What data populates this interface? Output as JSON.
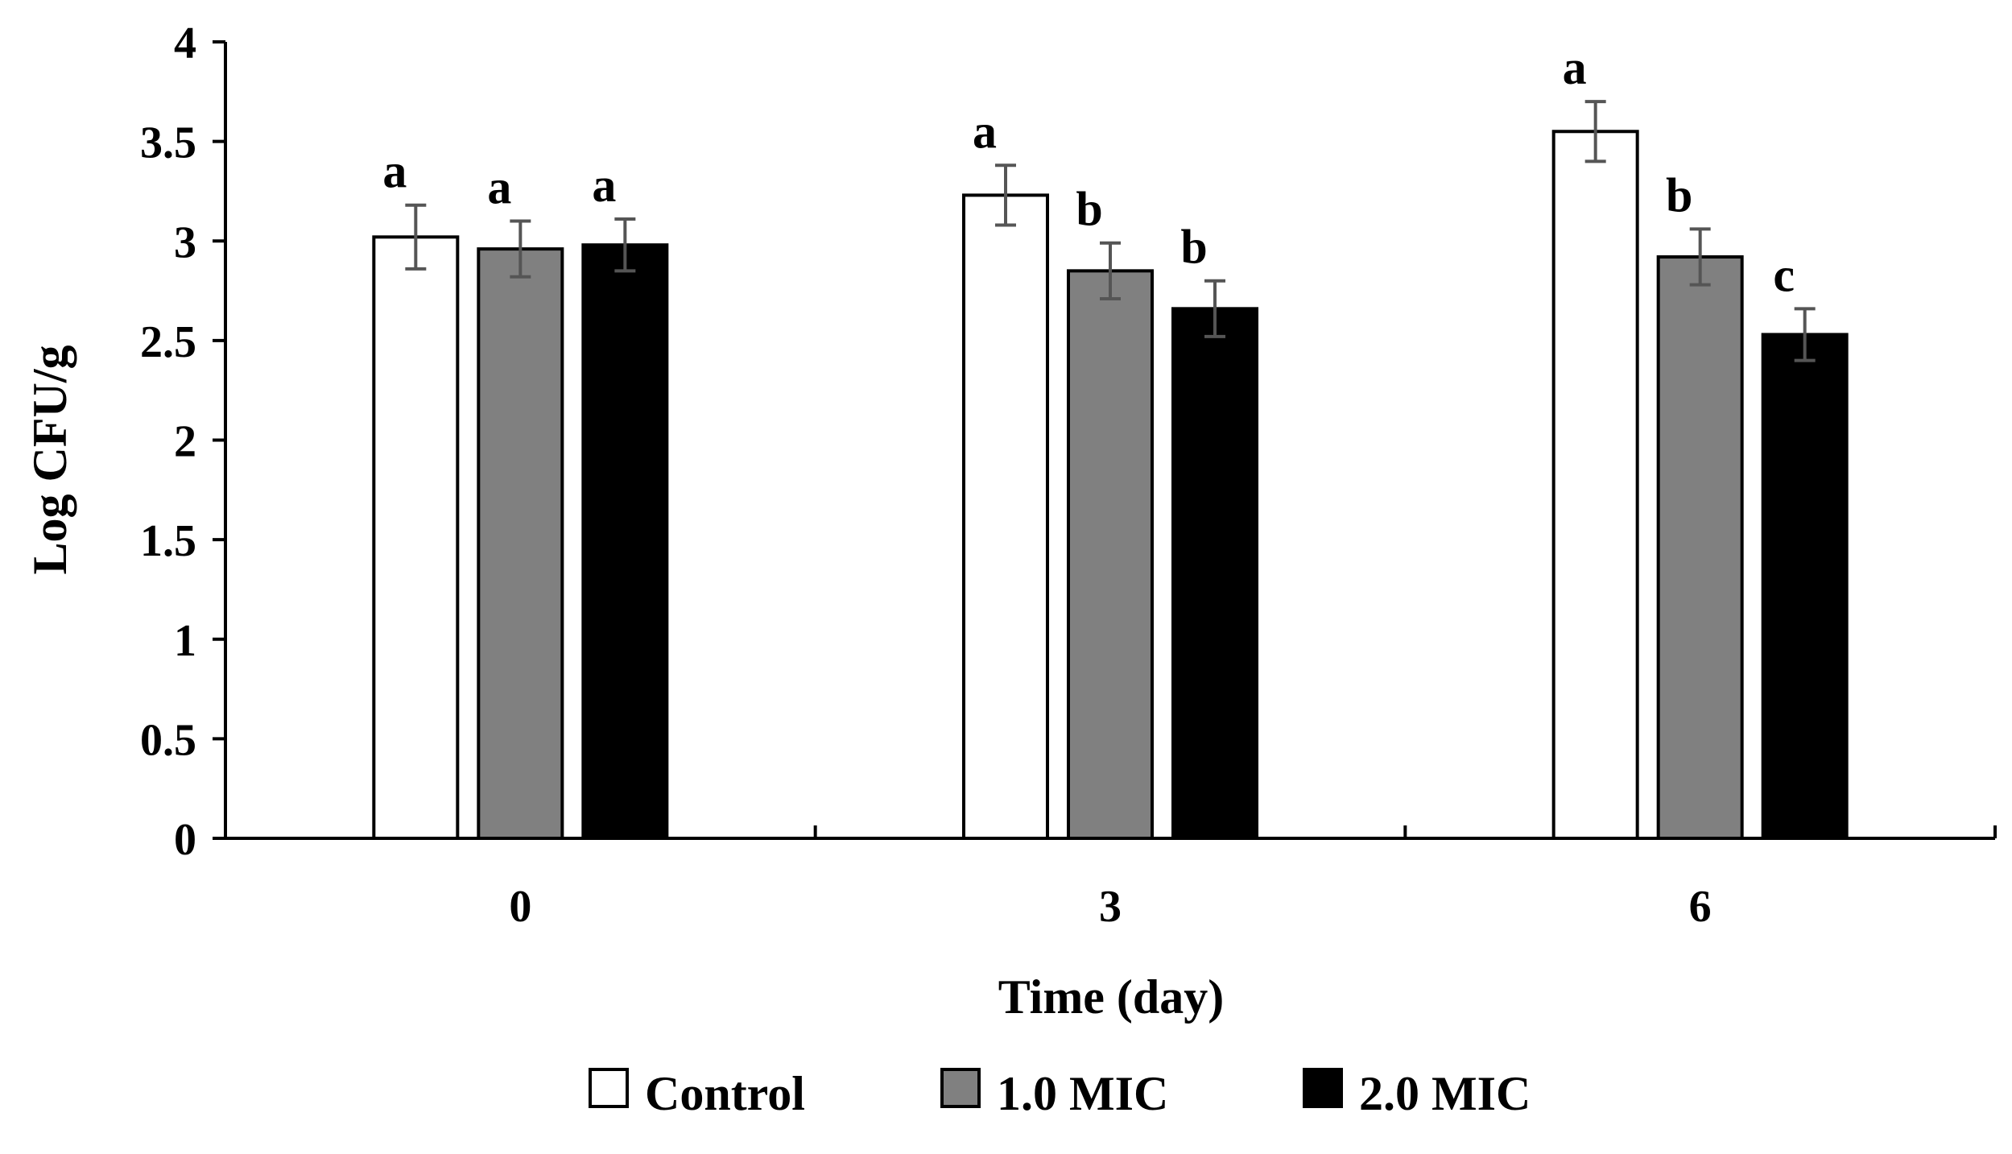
{
  "chart_data": {
    "type": "bar",
    "title": "",
    "xlabel": "Time (day)",
    "ylabel": "Log CFU/g",
    "categories": [
      "0",
      "3",
      "6"
    ],
    "ylim": [
      0,
      4
    ],
    "yticks": [
      "0",
      "0.5",
      "1",
      "1.5",
      "2",
      "2.5",
      "3",
      "3.5",
      "4"
    ],
    "grid": false,
    "legend_position": "bottom-center",
    "series": [
      {
        "name": "Control",
        "color": "#ffffff",
        "values": [
          3.02,
          3.23,
          3.55
        ],
        "errors": [
          0.16,
          0.15,
          0.15
        ],
        "letters": [
          "a",
          "a",
          "a"
        ]
      },
      {
        "name": "1.0 MIC",
        "color": "#808080",
        "values": [
          2.96,
          2.85,
          2.92
        ],
        "errors": [
          0.14,
          0.14,
          0.14
        ],
        "letters": [
          "a",
          "b",
          "b"
        ]
      },
      {
        "name": "2.0 MIC",
        "color": "#000000",
        "values": [
          2.98,
          2.66,
          2.53
        ],
        "errors": [
          0.13,
          0.14,
          0.13
        ],
        "letters": [
          "a",
          "b",
          "c"
        ]
      }
    ]
  }
}
